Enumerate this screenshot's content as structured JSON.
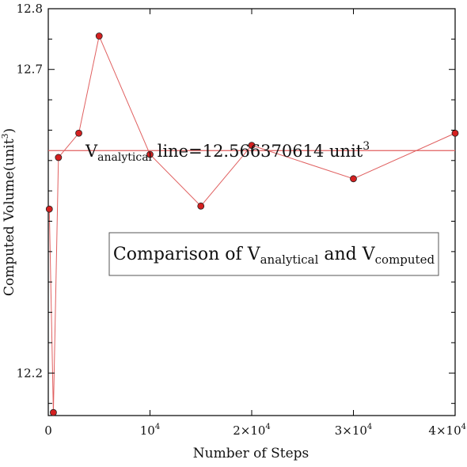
{
  "chart_data": {
    "type": "line",
    "xlabel": "Number of Steps",
    "ylabel_main": "Computed Volume(unit",
    "ylabel_sup": "3",
    "ylabel_close": ")",
    "xlim": [
      0,
      40000
    ],
    "ylim": [
      12.13,
      12.8
    ],
    "x_ticks": [
      {
        "value": 0,
        "label": "0",
        "sup": ""
      },
      {
        "value": 10000,
        "label": "10",
        "sup": "4"
      },
      {
        "value": 20000,
        "label": "2×10",
        "sup": "4"
      },
      {
        "value": 30000,
        "label": "3×10",
        "sup": "4"
      },
      {
        "value": 40000,
        "label": "4×10",
        "sup": "4"
      }
    ],
    "y_major_ticks": [
      {
        "value": 12.2,
        "label": "12.2"
      },
      {
        "value": 12.7,
        "label": "12.7"
      },
      {
        "value": 12.8,
        "label": "12.8"
      }
    ],
    "y_minor_ticks": [
      12.15,
      12.25,
      12.3,
      12.35,
      12.4,
      12.45,
      12.5,
      12.55,
      12.6,
      12.65,
      12.75
    ],
    "reference_line": {
      "value": 12.566370614,
      "label_main": "V",
      "label_sub": "analytical",
      "label_rest": " line=12.566370614 unit",
      "label_sup": "3"
    },
    "series": [
      {
        "x": [
          100,
          500,
          1000,
          3000,
          5000,
          10000,
          15000,
          20000,
          30000,
          40000
        ],
        "y": [
          12.47,
          12.135,
          12.555,
          12.595,
          12.755,
          12.56,
          12.475,
          12.575,
          12.52,
          12.595
        ]
      }
    ],
    "legend_box": {
      "prefix": "Comparison of  ",
      "v1_main": "V",
      "v1_sub": "analytical",
      "middle": " and ",
      "v2_main": "V",
      "v2_sub": "computed"
    },
    "colors": {
      "series_line": "#e06060",
      "marker_fill": "#d42020",
      "marker_stroke": "#222222",
      "reference_line": "#e06060",
      "axis": "#000000"
    },
    "grid": false
  }
}
